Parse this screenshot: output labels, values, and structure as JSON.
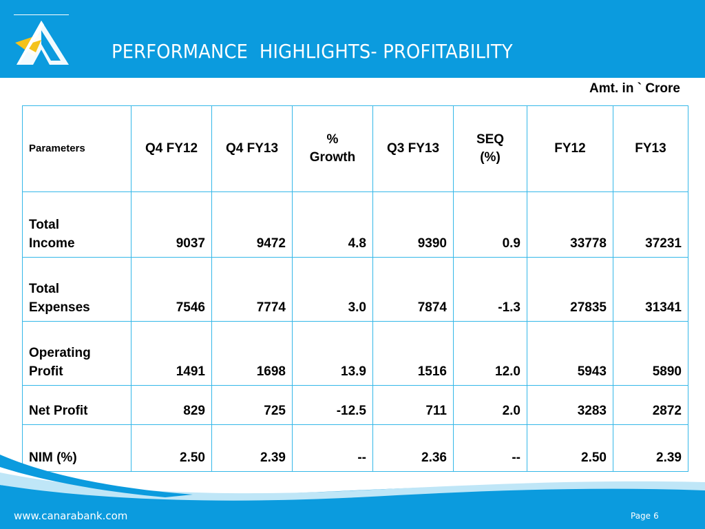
{
  "header": {
    "title": "PERFORMANCE  HIGHLIGHTS- PROFITABILITY"
  },
  "colors": {
    "header_blue": "#0b9bde",
    "table_border": "#33b7e8",
    "logo_yellow": "#f4c21a"
  },
  "unit_note": "Amt. in ` Crore",
  "table": {
    "headers": [
      "Parameters",
      "Q4 FY12",
      "Q4 FY13",
      "% Growth",
      "Q3 FY13",
      "SEQ (%)",
      "FY12",
      "FY13"
    ],
    "header_lines": {
      "growth": [
        "%",
        "Growth"
      ],
      "seq": [
        "SEQ",
        "(%)"
      ]
    },
    "rows": [
      {
        "label": [
          "Total",
          "Income"
        ],
        "values": [
          "9037",
          "9472",
          "4.8",
          "9390",
          "0.9",
          "33778",
          "37231"
        ]
      },
      {
        "label": [
          "Total",
          "Expenses"
        ],
        "values": [
          "7546",
          "7774",
          "3.0",
          "7874",
          "-1.3",
          "27835",
          "31341"
        ]
      },
      {
        "label": [
          "Operating",
          "Profit"
        ],
        "values": [
          "1491",
          "1698",
          "13.9",
          "1516",
          "12.0",
          "5943",
          "5890"
        ]
      },
      {
        "label": [
          "Net Profit"
        ],
        "values": [
          "829",
          "725",
          "-12.5",
          "711",
          "2.0",
          "3283",
          "2872"
        ]
      },
      {
        "label": [
          "NIM (%)"
        ],
        "values": [
          "2.50",
          "2.39",
          "--",
          "2.36",
          "--",
          "2.50",
          "2.39"
        ]
      }
    ]
  },
  "footer": {
    "url": "www.canarabank.com",
    "page_label": "Page",
    "page_number": "6"
  }
}
